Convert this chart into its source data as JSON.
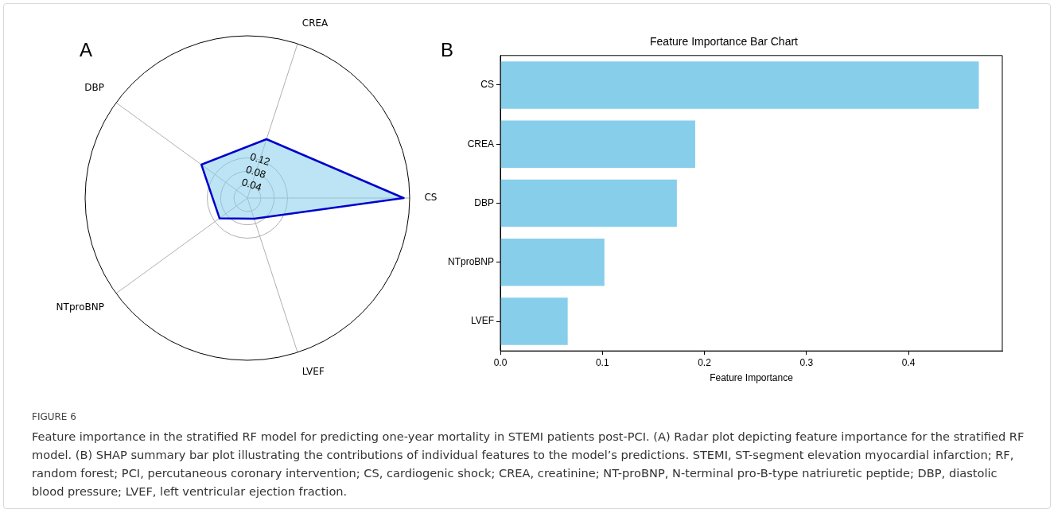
{
  "chart_data": [
    {
      "type": "radar",
      "categories": [
        "CREA",
        "CS",
        "LVEF",
        "NTproBNP",
        "DBP"
      ],
      "series": [
        {
          "color": "#0000cc",
          "values": [
            0.185,
            0.467,
            0.065,
            0.103,
            0.17
          ]
        }
      ],
      "ylim": [
        0,
        0.485
      ],
      "yticks": [
        0.04,
        0.08,
        0.12
      ],
      "grid": true,
      "legend": false,
      "annotations": [
        "A"
      ]
    },
    {
      "type": "bar",
      "orientation": "horizontal",
      "title": "Feature Importance Bar Chart",
      "xlabel": "Feature Importance",
      "categories": [
        "CS",
        "CREA",
        "DBP",
        "NTproBNP",
        "LVEF"
      ],
      "values": [
        0.469,
        0.191,
        0.173,
        0.102,
        0.066
      ],
      "color": "#87ceeb",
      "xlim": [
        0,
        0.492
      ],
      "xticks": [
        {
          "value": 0,
          "label": "0.0"
        },
        {
          "value": 0.1,
          "label": "0.1"
        },
        {
          "value": 0.2,
          "label": "0.2"
        },
        {
          "value": 0.3,
          "label": "0.3"
        },
        {
          "value": 0.4,
          "label": "0.4"
        }
      ],
      "grid": false,
      "legend": false,
      "annotations": [
        "B",
        "FIGURE 6",
        "Feature importance in the stratified RF model for predicting one-year mortality in STEMI patients post-PCI. (A) Radar plot depicting feature importance for the stratified RF model. (B) SHAP summary bar plot illustrating the contributions of individual features to the model’s predictions. STEMI, ST-segment elevation myocardial infarction; RF, random forest; PCI, percutaneous coronary intervention; CS, cardiogenic shock; CREA, creatinine; NT-proBNP, N-terminal pro-B-type natriuretic peptide; DBP, diastolic blood pressure; LVEF, left ventricular ejection fraction."
      ]
    }
  ]
}
